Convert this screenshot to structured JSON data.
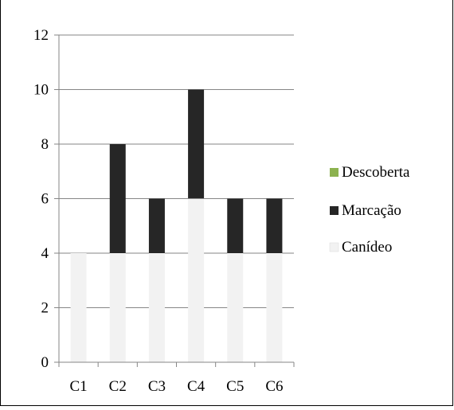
{
  "chart_data": {
    "type": "bar",
    "stacked": true,
    "title": "",
    "categories": [
      "C1",
      "C2",
      "C3",
      "C4",
      "C5",
      "C6"
    ],
    "series": [
      {
        "name": "Canídeo",
        "values": [
          4,
          4,
          4,
          6,
          4,
          4
        ],
        "color": "#f2f2f2"
      },
      {
        "name": "Marcação",
        "values": [
          0,
          4,
          2,
          4,
          2,
          2
        ],
        "color": "#262626"
      },
      {
        "name": "Descoberta",
        "values": [
          0,
          0,
          0,
          0,
          0,
          0
        ],
        "color": "#8cb24f"
      }
    ],
    "y_ticks": [
      "0",
      "2",
      "4",
      "6",
      "8",
      "10",
      "12"
    ],
    "ylim": [
      0,
      12
    ],
    "grid": true,
    "legend_position": "right",
    "legend": [
      {
        "label": "Descoberta",
        "color": "#8cb24f"
      },
      {
        "label": "Marcação",
        "color": "#262626"
      },
      {
        "label": "Canídeo",
        "color": "#f2f2f2"
      }
    ]
  }
}
